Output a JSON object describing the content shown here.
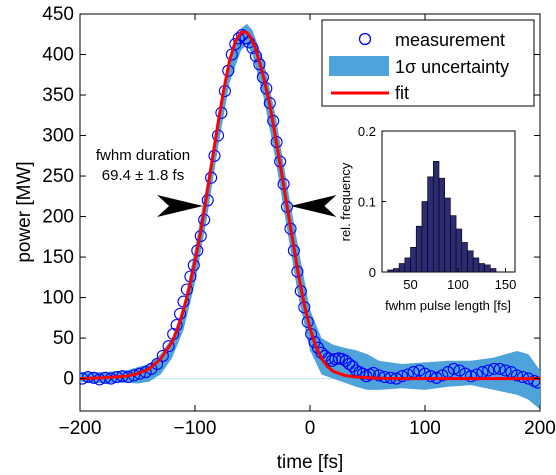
{
  "colors": {
    "measurement": "#0000ff",
    "uncertainty": "#4fa3db",
    "fit": "#ff0000",
    "histogram_bars": "#2c2b73",
    "zero_line": "#bfe4f2",
    "annotation_arrows": "#000000"
  },
  "chart_data": [
    {
      "type": "line",
      "xlabel": "time [fs]",
      "ylabel": "power [MW]",
      "xlim": [
        -200,
        200
      ],
      "ylim": [
        -40,
        450
      ],
      "xticks": [
        -200,
        -100,
        0,
        100,
        200
      ],
      "yticks": [
        0,
        50,
        100,
        150,
        200,
        250,
        300,
        350,
        400,
        450
      ],
      "grid": false,
      "legend_position": "top-right",
      "legend": {
        "measurement": "measurement",
        "uncertainty": "1σ uncertainty",
        "fit": "fit"
      },
      "annotation": {
        "line1": "fwhm duration",
        "line2": "69.4 ± 1.8 fs",
        "arrow_y": 213,
        "arrow_left_x": -93,
        "arrow_right_x": -17
      },
      "series": [
        {
          "name": "fit",
          "style": "line",
          "x": [
            -200,
            -180,
            -160,
            -150,
            -140,
            -130,
            -120,
            -115,
            -110,
            -105,
            -100,
            -95,
            -90,
            -85,
            -80,
            -75,
            -70,
            -65,
            -60,
            -57,
            -55,
            -52,
            -48,
            -45,
            -40,
            -35,
            -30,
            -25,
            -20,
            -15,
            -10,
            -5,
            0,
            5,
            10,
            15,
            20,
            30,
            40,
            50,
            60,
            80,
            100,
            120,
            150,
            180,
            200
          ],
          "y": [
            0,
            1,
            3,
            6,
            12,
            24,
            45,
            62,
            85,
            112,
            145,
            182,
            225,
            270,
            315,
            357,
            392,
            416,
            427,
            428,
            427,
            422,
            410,
            396,
            370,
            338,
            298,
            256,
            213,
            170,
            128,
            91,
            62,
            40,
            25,
            15,
            9,
            4,
            2,
            1,
            0.5,
            0,
            0,
            0,
            0,
            0,
            0
          ]
        },
        {
          "name": "measurement",
          "style": "markers",
          "x": [
            -198,
            -193,
            -188,
            -183,
            -178,
            -173,
            -168,
            -163,
            -158,
            -153,
            -148,
            -143,
            -138,
            -133,
            -128,
            -123,
            -119,
            -116,
            -113,
            -110,
            -107,
            -104,
            -101,
            -98,
            -95,
            -92,
            -89,
            -86,
            -83,
            -80,
            -77,
            -74,
            -71,
            -68,
            -65,
            -62,
            -59,
            -56,
            -53,
            -50,
            -47,
            -44,
            -41,
            -38,
            -35,
            -32,
            -29,
            -26,
            -23,
            -20,
            -17,
            -14,
            -11,
            -8,
            -5,
            -2,
            1,
            4,
            7,
            10,
            13,
            16,
            19,
            22,
            25,
            28,
            31,
            34,
            37,
            40,
            43,
            46,
            49,
            52,
            55,
            60,
            65,
            70,
            75,
            80,
            85,
            90,
            95,
            100,
            105,
            110,
            115,
            120,
            125,
            130,
            135,
            140,
            145,
            150,
            155,
            160,
            165,
            170,
            175,
            180,
            185,
            190,
            195,
            198
          ],
          "y": [
            0,
            2,
            1,
            -1,
            1,
            0,
            2,
            3,
            2,
            4,
            6,
            8,
            12,
            18,
            28,
            40,
            55,
            66,
            80,
            95,
            110,
            126,
            140,
            158,
            176,
            196,
            220,
            248,
            275,
            300,
            328,
            355,
            380,
            400,
            413,
            420,
            424,
            420,
            415,
            408,
            398,
            388,
            372,
            358,
            340,
            318,
            292,
            268,
            240,
            212,
            185,
            158,
            132,
            108,
            88,
            70,
            55,
            45,
            38,
            32,
            28,
            25,
            22,
            24,
            25,
            24,
            22,
            18,
            15,
            10,
            8,
            6,
            3,
            5,
            7,
            4,
            2,
            1,
            0,
            3,
            5,
            8,
            10,
            6,
            3,
            1,
            4,
            8,
            12,
            10,
            6,
            3,
            5,
            8,
            10,
            12,
            12,
            10,
            8,
            4,
            2,
            0,
            -3,
            -5
          ]
        },
        {
          "name": "1σ uncertainty",
          "style": "band",
          "x": [
            -200,
            -180,
            -160,
            -150,
            -140,
            -130,
            -120,
            -110,
            -100,
            -90,
            -80,
            -70,
            -60,
            -55,
            -50,
            -40,
            -30,
            -20,
            -10,
            0,
            10,
            20,
            30,
            40,
            50,
            60,
            80,
            100,
            120,
            140,
            160,
            180,
            190,
            200
          ],
          "y_low": [
            -4,
            -6,
            -5,
            -6,
            -4,
            5,
            25,
            60,
            118,
            195,
            285,
            365,
            405,
            412,
            400,
            345,
            270,
            185,
            100,
            35,
            5,
            0,
            -5,
            -10,
            -14,
            -14,
            -12,
            -14,
            -10,
            -8,
            -14,
            -20,
            -26,
            -38
          ],
          "y_high": [
            8,
            8,
            10,
            14,
            18,
            30,
            50,
            90,
            160,
            240,
            325,
            398,
            432,
            438,
            430,
            390,
            325,
            240,
            160,
            85,
            50,
            42,
            38,
            35,
            30,
            22,
            18,
            20,
            22,
            22,
            26,
            34,
            30,
            10
          ]
        }
      ]
    },
    {
      "type": "bar",
      "xlabel": "fwhm pulse length [fs]",
      "ylabel": "rel. frequency",
      "xlim": [
        20,
        160
      ],
      "ylim": [
        0,
        0.2
      ],
      "xticks": [
        50,
        100,
        150
      ],
      "yticks": [
        0,
        0.1,
        0.2
      ],
      "bin_width": 6,
      "categories": [
        29,
        35,
        41,
        47,
        53,
        59,
        65,
        71,
        77,
        83,
        89,
        95,
        101,
        107,
        113,
        119,
        125,
        131,
        137
      ],
      "values": [
        0.003,
        0.005,
        0.012,
        0.02,
        0.035,
        0.065,
        0.1,
        0.135,
        0.157,
        0.133,
        0.105,
        0.08,
        0.061,
        0.042,
        0.03,
        0.02,
        0.012,
        0.01,
        0.005
      ]
    }
  ]
}
